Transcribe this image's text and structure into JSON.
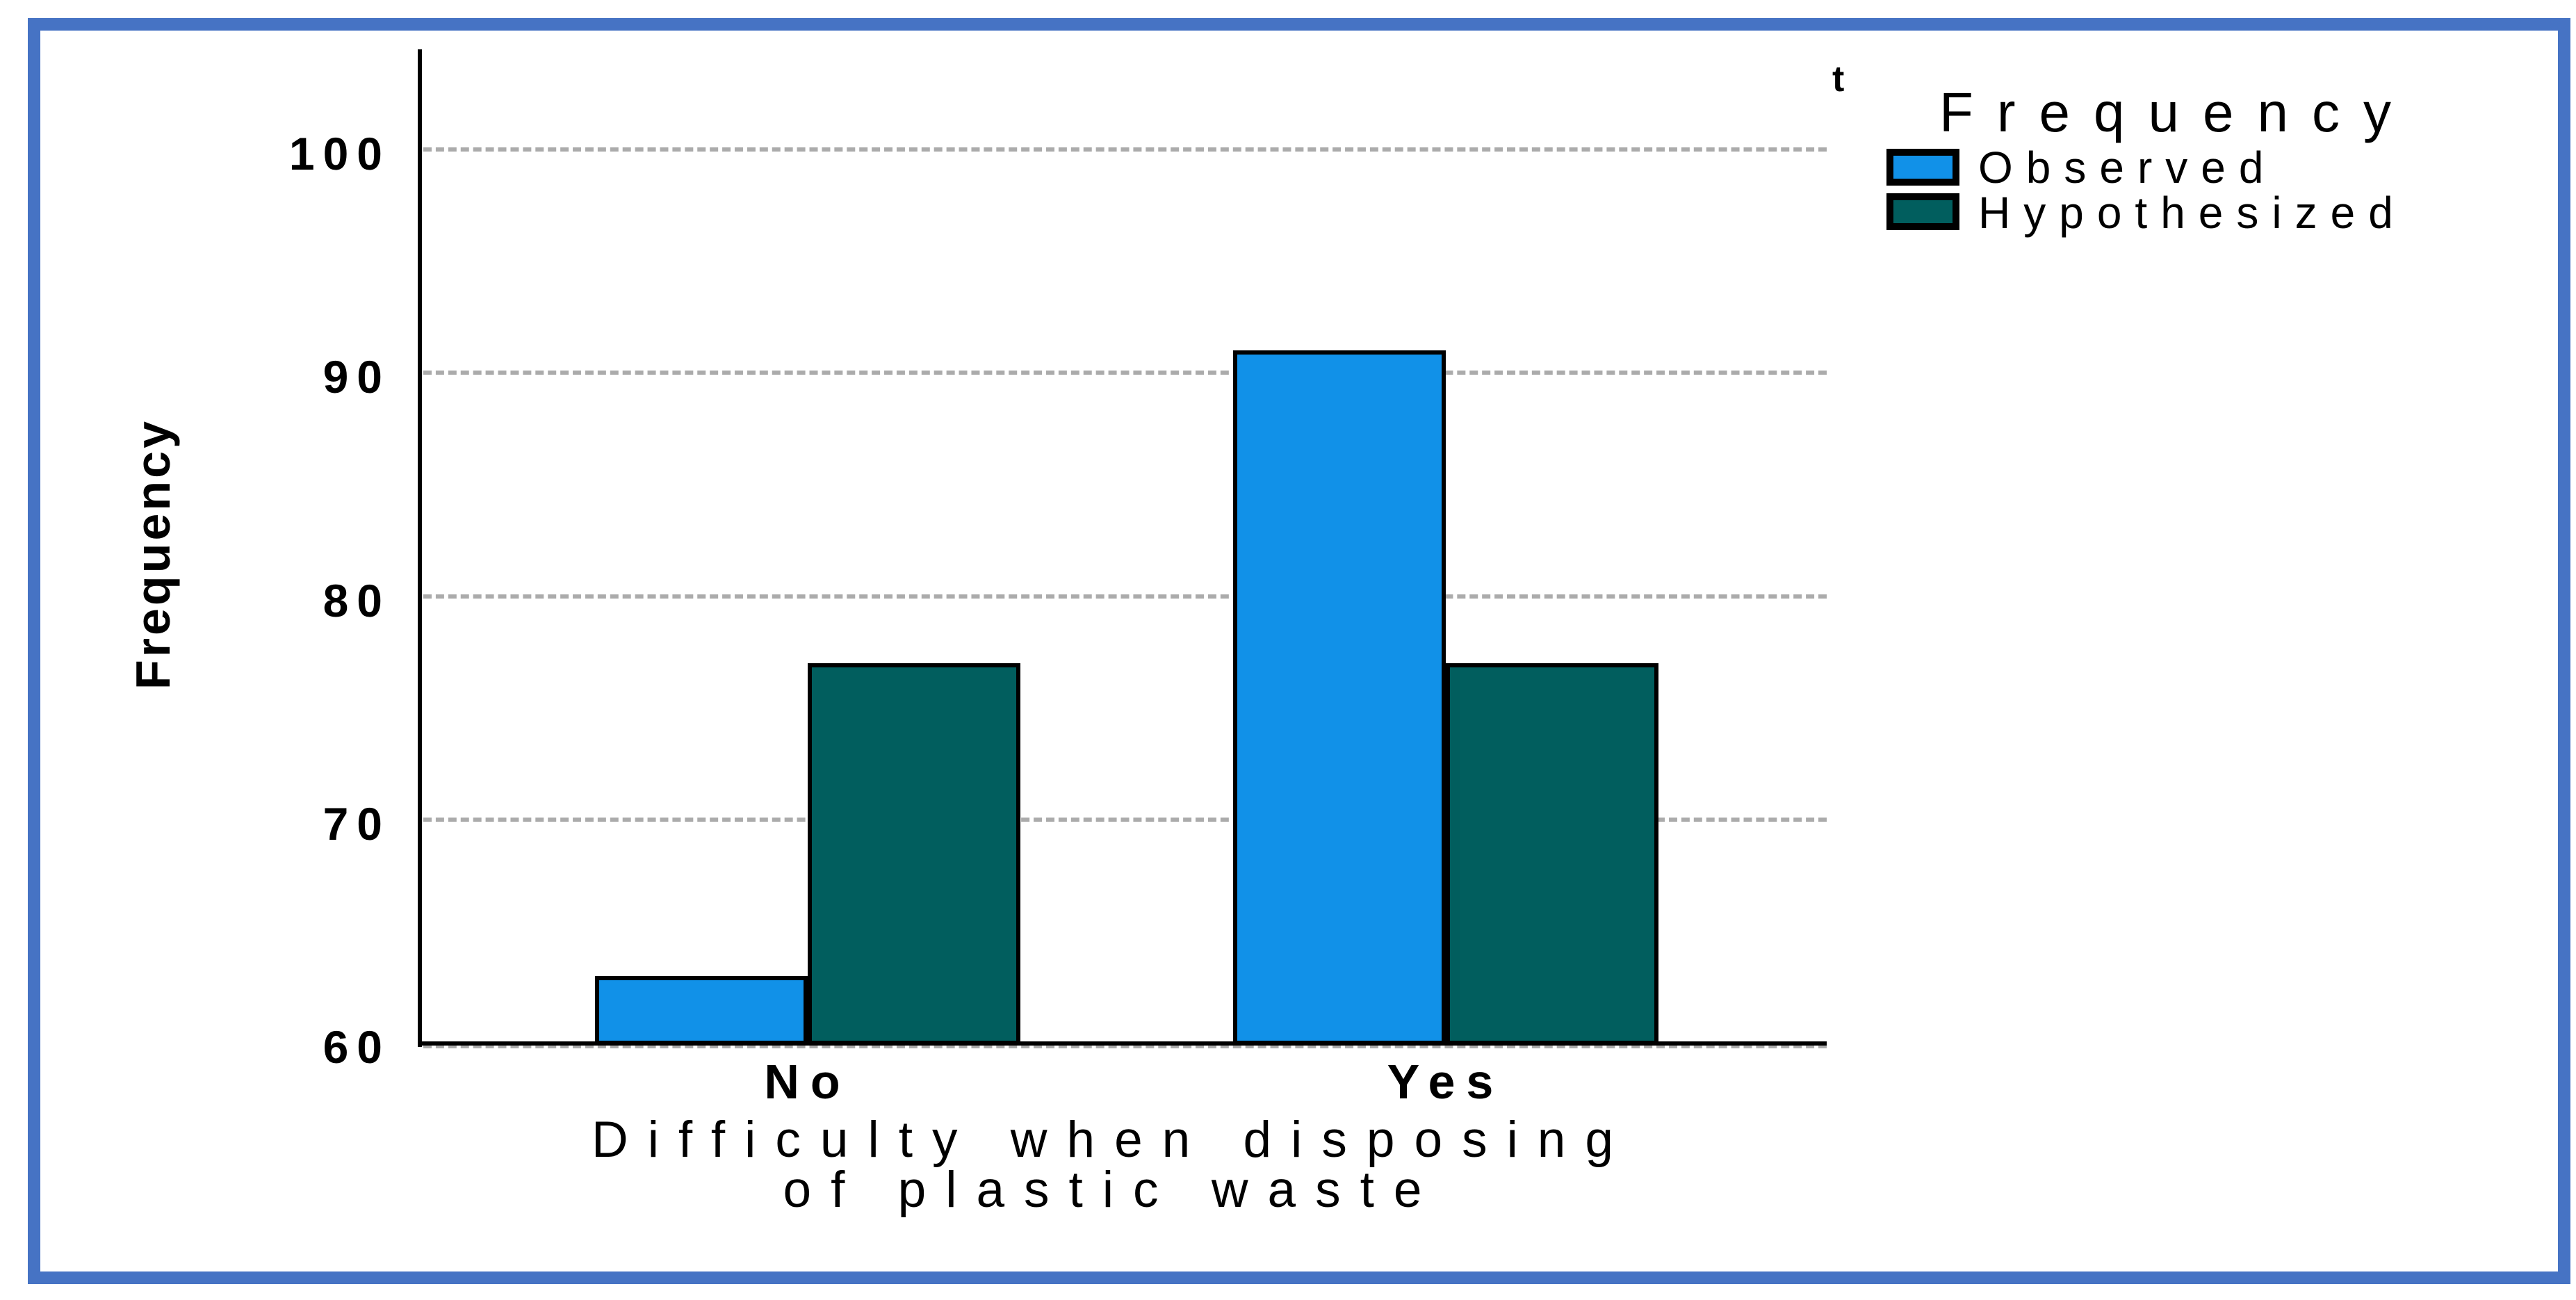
{
  "chart_data": {
    "type": "bar",
    "categories": [
      "No",
      "Yes"
    ],
    "series": [
      {
        "name": "Observed",
        "color": "#1191E8",
        "values": [
          63,
          91
        ]
      },
      {
        "name": "Hypothesized",
        "color": "#015E5E",
        "values": [
          77,
          77
        ]
      }
    ],
    "xlabel": "Difficulty when disposing\nof plastic waste",
    "ylabel": "Frequency",
    "y_ticks": [
      60,
      70,
      80,
      90,
      100
    ],
    "ylim": [
      60,
      104.5
    ],
    "grid": "horizontal-dashed",
    "legend": {
      "title": "Frequency",
      "footnote_marker": "t",
      "position": "top-right",
      "entries": [
        "Observed",
        "Hypothesized"
      ]
    }
  },
  "colors": {
    "frame_border": "#4673C4",
    "gridline": "#ABABAB",
    "bar_outline": "#000000",
    "observed": "#1191E8",
    "hypothesized": "#015E5E"
  }
}
